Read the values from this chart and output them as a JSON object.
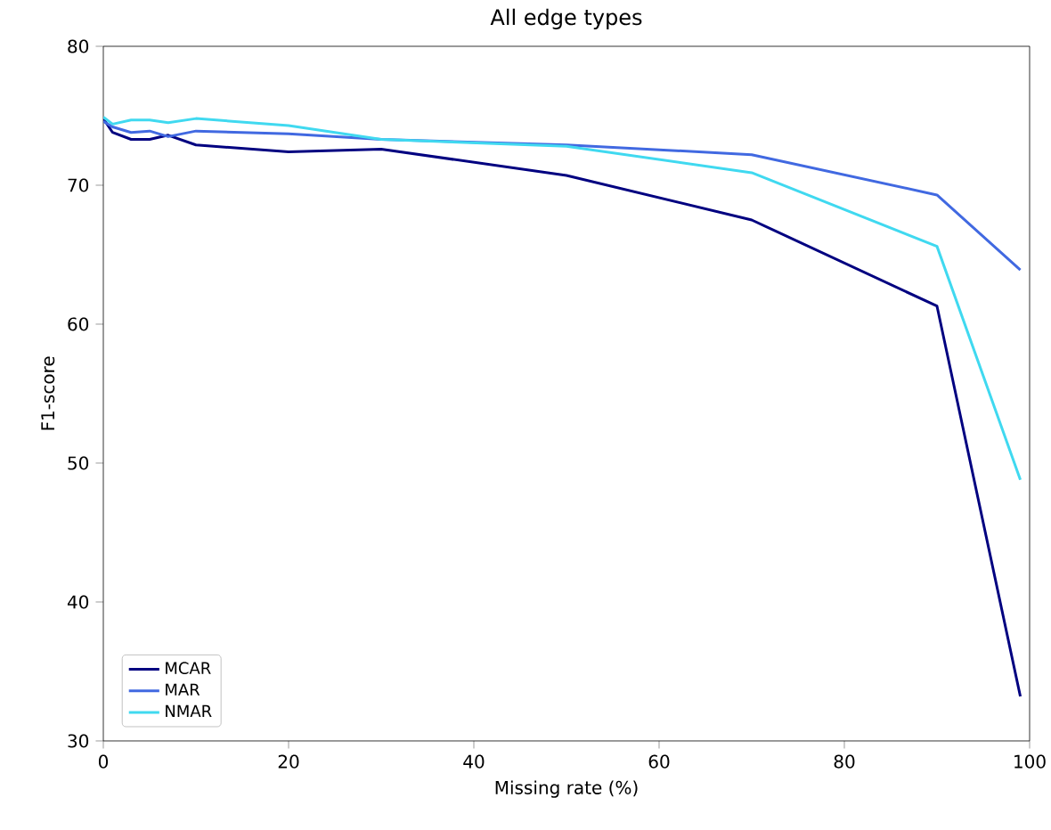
{
  "chart_data": {
    "type": "line",
    "title": "All edge types",
    "xlabel": "Missing rate (%)",
    "ylabel": "F1-score",
    "x": [
      0,
      1,
      3,
      5,
      7,
      10,
      20,
      30,
      50,
      70,
      90,
      99
    ],
    "series": [
      {
        "name": "MCAR",
        "color": "#000080",
        "values": [
          74.8,
          73.8,
          73.3,
          73.3,
          73.6,
          72.9,
          72.4,
          72.6,
          70.7,
          67.5,
          61.3,
          33.2
        ]
      },
      {
        "name": "MAR",
        "color": "#4169e1",
        "values": [
          74.6,
          74.2,
          73.8,
          73.9,
          73.5,
          73.9,
          73.7,
          73.3,
          72.9,
          72.2,
          69.3,
          63.9
        ]
      },
      {
        "name": "NMAR",
        "color": "#40d9f0",
        "values": [
          74.9,
          74.4,
          74.7,
          74.7,
          74.5,
          74.8,
          74.3,
          73.3,
          72.8,
          70.9,
          65.6,
          48.8
        ]
      }
    ],
    "xlim": [
      0,
      100
    ],
    "ylim": [
      30,
      80
    ],
    "xticks": [
      0,
      20,
      40,
      60,
      80,
      100
    ],
    "yticks": [
      30,
      40,
      50,
      60,
      70,
      80
    ],
    "legend": "bottom left",
    "grid": false,
    "marker": "none",
    "line_style": "solid"
  }
}
